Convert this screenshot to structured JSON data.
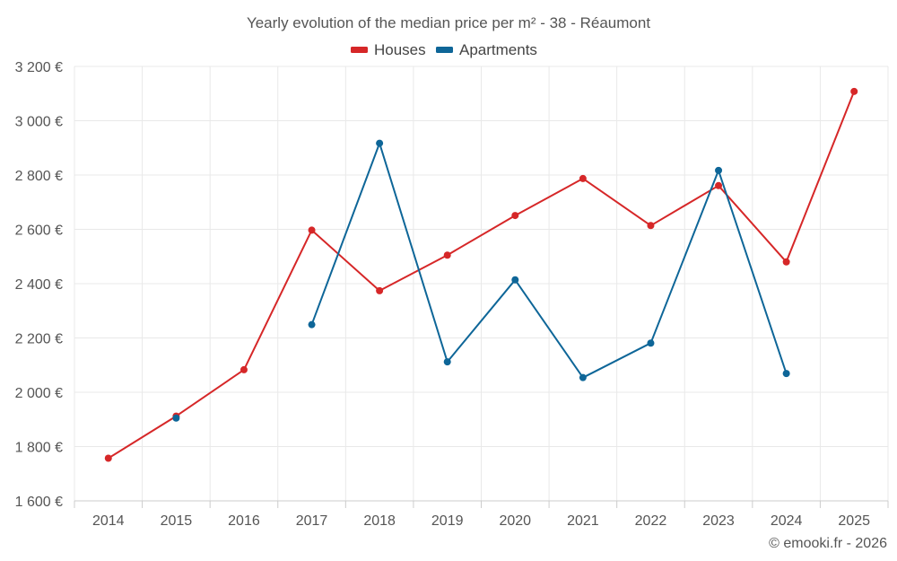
{
  "chart_data": {
    "type": "line",
    "title": "Yearly evolution of the median price per m² - 38 - Réaumont",
    "xlabel": "",
    "ylabel": "",
    "categories": [
      "2014",
      "2015",
      "2016",
      "2017",
      "2018",
      "2019",
      "2020",
      "2021",
      "2022",
      "2023",
      "2024",
      "2025"
    ],
    "ylim": [
      1600,
      3200
    ],
    "yticks": [
      1600,
      1800,
      2000,
      2200,
      2400,
      2600,
      2800,
      3000,
      3200
    ],
    "ytick_labels": [
      "1 600 €",
      "1 800 €",
      "2 000 €",
      "2 200 €",
      "2 400 €",
      "2 600 €",
      "2 800 €",
      "3 000 €",
      "3 200 €"
    ],
    "grid": true,
    "legend_position": "top-center",
    "series": [
      {
        "name": "Houses",
        "color": "#d62728",
        "values": [
          1757,
          1912,
          2083,
          2597,
          2374,
          2505,
          2651,
          2787,
          2614,
          2761,
          2480,
          3108
        ]
      },
      {
        "name": "Apartments",
        "color": "#0e6698",
        "values": [
          null,
          1905,
          null,
          2249,
          2917,
          2112,
          2414,
          2054,
          2181,
          2817,
          2069,
          null
        ]
      }
    ],
    "credit": "© emooki.fr - 2026"
  }
}
